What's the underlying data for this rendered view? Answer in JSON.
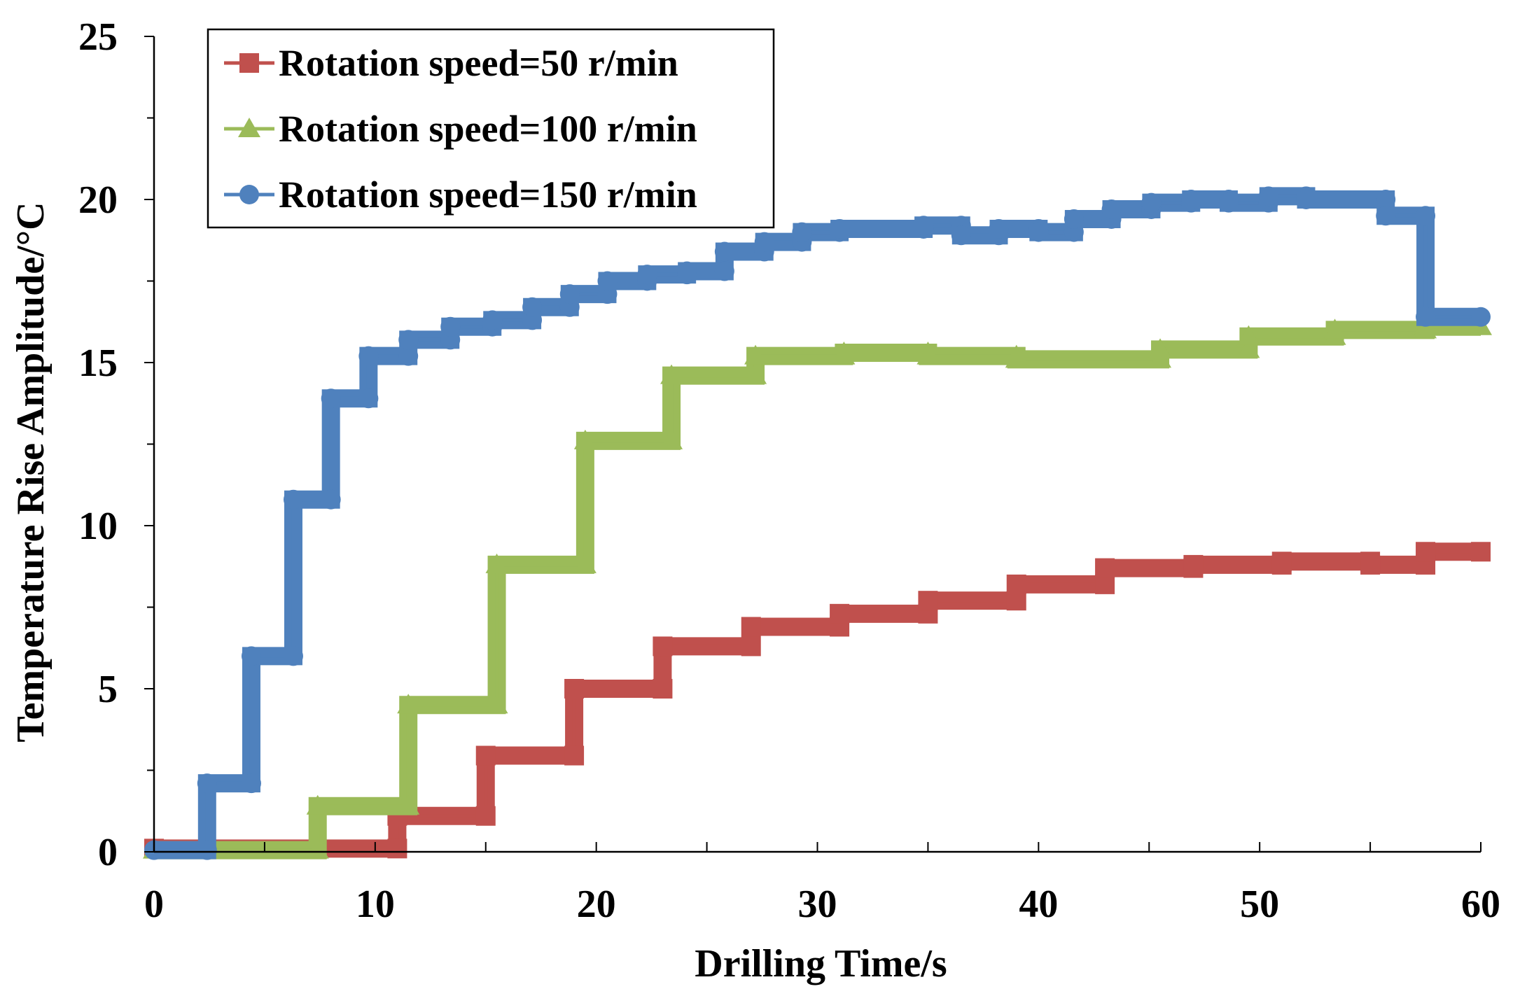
{
  "chart_data": {
    "type": "line",
    "title": "",
    "xlabel": "Drilling Time/s",
    "ylabel": "Temperature Rise Amplitude/°C",
    "xlim": [
      0,
      60
    ],
    "ylim": [
      0,
      25
    ],
    "xticks": [
      0,
      10,
      20,
      30,
      40,
      50,
      60
    ],
    "yticks": [
      0,
      5,
      10,
      15,
      20,
      25
    ],
    "grid": false,
    "legend_position": "top-left",
    "series": [
      {
        "name": "Rotation speed=50 r/min",
        "color": "#c0504d",
        "marker": "square",
        "x": [
          0,
          11,
          11,
          15,
          15,
          19,
          19,
          23,
          23,
          27,
          27,
          31,
          31,
          35,
          35,
          39,
          39,
          43,
          43,
          47,
          47,
          51,
          51,
          55,
          55,
          57.5,
          57.5,
          60
        ],
        "y": [
          0.1,
          0.1,
          1.1,
          1.1,
          2.95,
          2.95,
          5.0,
          5.0,
          6.3,
          6.3,
          6.9,
          6.9,
          7.3,
          7.3,
          7.7,
          7.7,
          8.2,
          8.2,
          8.7,
          8.7,
          8.8,
          8.8,
          8.9,
          8.9,
          8.8,
          8.8,
          9.2,
          9.2
        ]
      },
      {
        "name": "Rotation speed=100 r/min",
        "color": "#9bbb59",
        "marker": "triangle",
        "x": [
          0,
          7.4,
          7.4,
          11.5,
          11.5,
          15.5,
          15.5,
          19.5,
          19.5,
          23.4,
          23.4,
          27.2,
          27.2,
          31.2,
          31.2,
          35,
          35,
          39,
          39,
          45.5,
          45.5,
          49.5,
          49.5,
          53.4,
          53.4,
          57.5,
          57.5,
          60
        ],
        "y": [
          0.05,
          0.05,
          1.4,
          1.4,
          4.5,
          4.5,
          8.8,
          8.8,
          12.6,
          12.6,
          14.6,
          14.6,
          15.2,
          15.2,
          15.3,
          15.3,
          15.2,
          15.2,
          15.1,
          15.1,
          15.4,
          15.4,
          15.8,
          15.8,
          16.0,
          16.0,
          16.1,
          16.1
        ]
      },
      {
        "name": "Rotation speed=150 r/min",
        "color": "#4f81bd",
        "marker": "circle",
        "x": [
          0,
          2.4,
          2.4,
          4.4,
          4.4,
          6.3,
          6.3,
          8.0,
          8.0,
          9.7,
          9.7,
          11.5,
          11.5,
          13.4,
          13.4,
          15.3,
          15.3,
          17.1,
          17.1,
          18.8,
          18.8,
          20.5,
          20.5,
          22.3,
          22.3,
          24.1,
          24.1,
          25.8,
          25.8,
          27.6,
          27.6,
          29.3,
          29.3,
          31.0,
          31.0,
          34.8,
          34.8,
          36.5,
          36.5,
          38.2,
          38.2,
          40,
          40,
          41.6,
          41.6,
          43.3,
          43.3,
          45.1,
          45.1,
          46.9,
          46.9,
          48.6,
          48.6,
          50.4,
          50.4,
          52.1,
          52.1,
          55.7,
          55.7,
          57.5,
          57.5,
          60
        ],
        "y": [
          0.05,
          0.05,
          2.1,
          2.1,
          6.0,
          6.0,
          10.8,
          10.8,
          13.9,
          13.9,
          15.2,
          15.2,
          15.7,
          15.7,
          16.1,
          16.1,
          16.3,
          16.3,
          16.7,
          16.7,
          17.1,
          17.1,
          17.5,
          17.5,
          17.7,
          17.7,
          17.8,
          17.8,
          18.4,
          18.4,
          18.7,
          18.7,
          19.0,
          19.0,
          19.1,
          19.1,
          19.2,
          19.2,
          18.9,
          18.9,
          19.1,
          19.1,
          19.0,
          19.0,
          19.4,
          19.4,
          19.7,
          19.7,
          19.9,
          19.9,
          20.0,
          20.0,
          19.9,
          19.9,
          20.1,
          20.1,
          20.0,
          20.0,
          19.5,
          19.5,
          16.4,
          16.4
        ]
      }
    ]
  }
}
